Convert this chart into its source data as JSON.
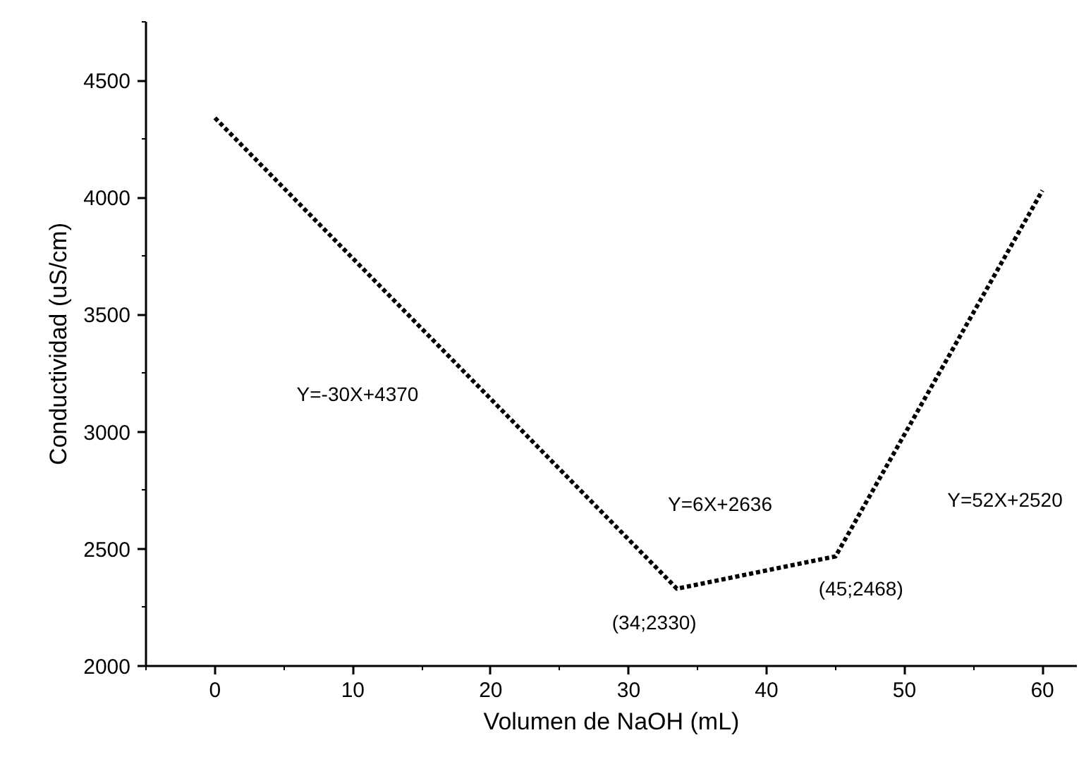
{
  "chart_data": {
    "type": "line",
    "xlabel": "Volumen de NaOH (mL)",
    "ylabel": "Conductividad (uS/cm)",
    "xlim": [
      -5,
      62.5
    ],
    "xticks": [
      0,
      10,
      20,
      30,
      40,
      50,
      60
    ],
    "ylim": [
      2000,
      4750
    ],
    "yticks": [
      2000,
      2500,
      3000,
      3500,
      4000,
      4500
    ],
    "grid": false,
    "line_style": "dotted",
    "series": [
      {
        "color": "#000000",
        "x": [
          0,
          33.5,
          45,
          60
        ],
        "values": [
          4340,
          2330,
          2468,
          4030
        ]
      }
    ],
    "annotations": [
      "Y=-30X+4370",
      "Y=6X+2636",
      "Y=52X+2520",
      {
        "text": "(34;2330)",
        "x": 34,
        "y": 2330
      },
      {
        "text": "(45;2468)",
        "x": 45,
        "y": 2468
      }
    ]
  }
}
